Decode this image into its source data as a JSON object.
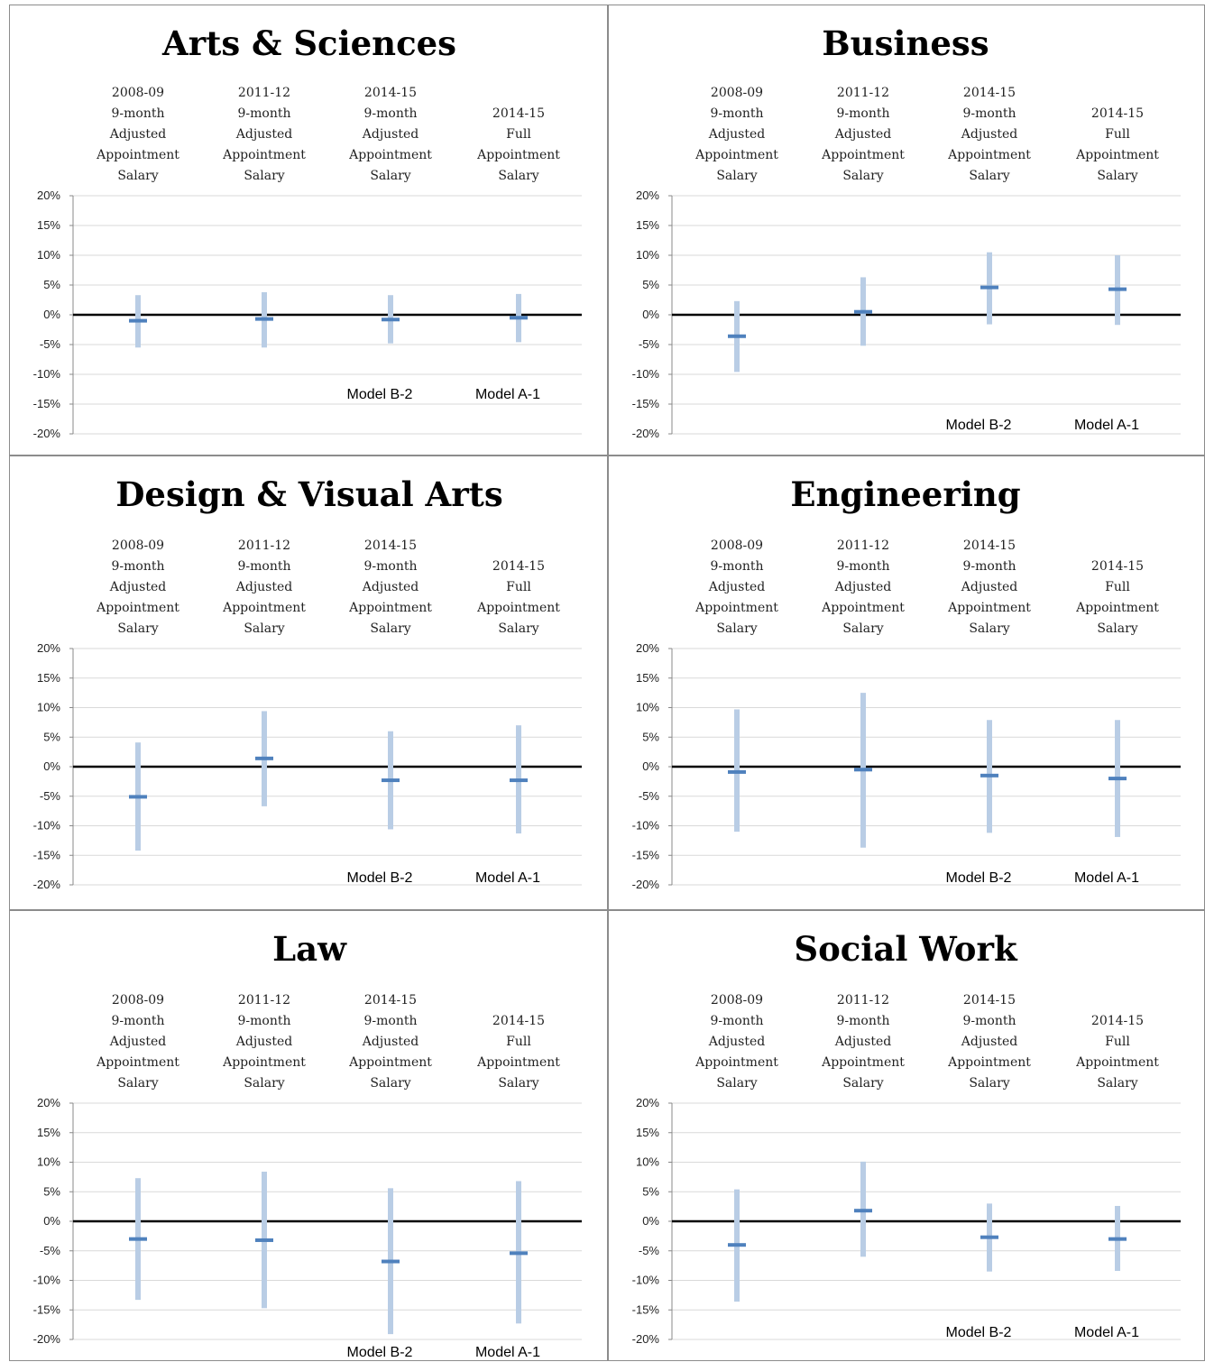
{
  "chart_data": [
    {
      "type": "error-bar",
      "title": "Arts & Sciences",
      "categories": [
        "2008-09\n9-month\nAdjusted\nAppointment\nSalary",
        "2011-12\n9-month\nAdjusted\nAppointment\nSalary",
        "2014-15\n9-month\nAdjusted\nAppointment\nSalary",
        "2014-15\nFull\nAppointment\nSalary"
      ],
      "estimate": [
        -1.0,
        -0.7,
        -0.8,
        -0.5
      ],
      "lower": [
        -5.5,
        -5.5,
        -4.8,
        -4.6
      ],
      "upper": [
        3.3,
        3.8,
        3.3,
        3.5
      ],
      "model_labels": [
        "",
        "",
        "Model B-2",
        "Model A-1"
      ],
      "y_ticks": [
        "20%",
        "15%",
        "10%",
        "5%",
        "0%",
        "-5%",
        "-10%",
        "-15%",
        "-20%"
      ],
      "ylim": [
        -20,
        20
      ],
      "grid": true
    },
    {
      "type": "error-bar",
      "title": "Business",
      "categories": [
        "2008-09\n9-month\nAdjusted\nAppointment\nSalary",
        "2011-12\n9-month\nAdjusted\nAppointment\nSalary",
        "2014-15\n9-month\nAdjusted\nAppointment\nSalary",
        "2014-15\nFull\nAppointment\nSalary"
      ],
      "estimate": [
        -3.6,
        0.5,
        4.6,
        4.3
      ],
      "lower": [
        -9.6,
        -5.2,
        -1.6,
        -1.7
      ],
      "upper": [
        2.3,
        6.3,
        10.5,
        10.0
      ],
      "model_labels": [
        "",
        "",
        "Model B-2",
        "Model A-1"
      ],
      "y_ticks": [
        "20%",
        "15%",
        "10%",
        "5%",
        "0%",
        "-5%",
        "-10%",
        "-15%",
        "-20%"
      ],
      "ylim": [
        -20,
        20
      ],
      "grid": true
    },
    {
      "type": "error-bar",
      "title": "Design & Visual Arts",
      "categories": [
        "2008-09\n9-month\nAdjusted\nAppointment\nSalary",
        "2011-12\n9-month\nAdjusted\nAppointment\nSalary",
        "2014-15\n9-month\nAdjusted\nAppointment\nSalary",
        "2014-15\nFull\nAppointment\nSalary"
      ],
      "estimate": [
        -5.1,
        1.4,
        -2.3,
        -2.3
      ],
      "lower": [
        -14.2,
        -6.7,
        -10.6,
        -11.3
      ],
      "upper": [
        4.1,
        9.4,
        6.0,
        7.0
      ],
      "model_labels": [
        "",
        "",
        "Model B-2",
        "Model A-1"
      ],
      "y_ticks": [
        "20%",
        "15%",
        "10%",
        "5%",
        "0%",
        "-5%",
        "-10%",
        "-15%",
        "-20%"
      ],
      "ylim": [
        -20,
        20
      ],
      "grid": true
    },
    {
      "type": "error-bar",
      "title": "Engineering",
      "categories": [
        "2008-09\n9-month\nAdjusted\nAppointment\nSalary",
        "2011-12\n9-month\nAdjusted\nAppointment\nSalary",
        "2014-15\n9-month\nAdjusted\nAppointment\nSalary",
        "2014-15\nFull\nAppointment\nSalary"
      ],
      "estimate": [
        -0.9,
        -0.5,
        -1.5,
        -2.0
      ],
      "lower": [
        -11.0,
        -13.7,
        -11.2,
        -11.9
      ],
      "upper": [
        9.7,
        12.5,
        7.9,
        7.9
      ],
      "model_labels": [
        "",
        "",
        "Model B-2",
        "Model A-1"
      ],
      "y_ticks": [
        "20%",
        "15%",
        "10%",
        "5%",
        "0%",
        "-5%",
        "-10%",
        "-15%",
        "-20%"
      ],
      "ylim": [
        -20,
        20
      ],
      "grid": true
    },
    {
      "type": "error-bar",
      "title": "Law",
      "categories": [
        "2008-09\n9-month\nAdjusted\nAppointment\nSalary",
        "2011-12\n9-month\nAdjusted\nAppointment\nSalary",
        "2014-15\n9-month\nAdjusted\nAppointment\nSalary",
        "2014-15\nFull\nAppointment\nSalary"
      ],
      "estimate": [
        -3.0,
        -3.2,
        -6.8,
        -5.4
      ],
      "lower": [
        -13.3,
        -14.7,
        -19.1,
        -17.3
      ],
      "upper": [
        7.3,
        8.4,
        5.6,
        6.8
      ],
      "model_labels": [
        "",
        "",
        "Model B-2",
        "Model A-1"
      ],
      "y_ticks": [
        "20%",
        "15%",
        "10%",
        "5%",
        "0%",
        "-5%",
        "-10%",
        "-15%",
        "-20%"
      ],
      "ylim": [
        -20,
        20
      ],
      "grid": true
    },
    {
      "type": "error-bar",
      "title": "Social Work",
      "categories": [
        "2008-09\n9-month\nAdjusted\nAppointment\nSalary",
        "2011-12\n9-month\nAdjusted\nAppointment\nSalary",
        "2014-15\n9-month\nAdjusted\nAppointment\nSalary",
        "2014-15\nFull\nAppointment\nSalary"
      ],
      "estimate": [
        -4.0,
        1.8,
        -2.7,
        -3.0
      ],
      "lower": [
        -13.6,
        -6.0,
        -8.5,
        -8.4
      ],
      "upper": [
        5.4,
        10.1,
        3.0,
        2.6
      ],
      "model_labels": [
        "",
        "",
        "Model B-2",
        "Model A-1"
      ],
      "y_ticks": [
        "20%",
        "15%",
        "10%",
        "5%",
        "0%",
        "-5%",
        "-10%",
        "-15%",
        "-20%"
      ],
      "ylim": [
        -20,
        20
      ],
      "grid": true
    }
  ],
  "colors": {
    "interval": "#b9cde5",
    "estimate": "#4f81bd",
    "gridline": "#d9d9d9",
    "zero_line": "#000000",
    "panel_border": "#8c8c8c"
  }
}
